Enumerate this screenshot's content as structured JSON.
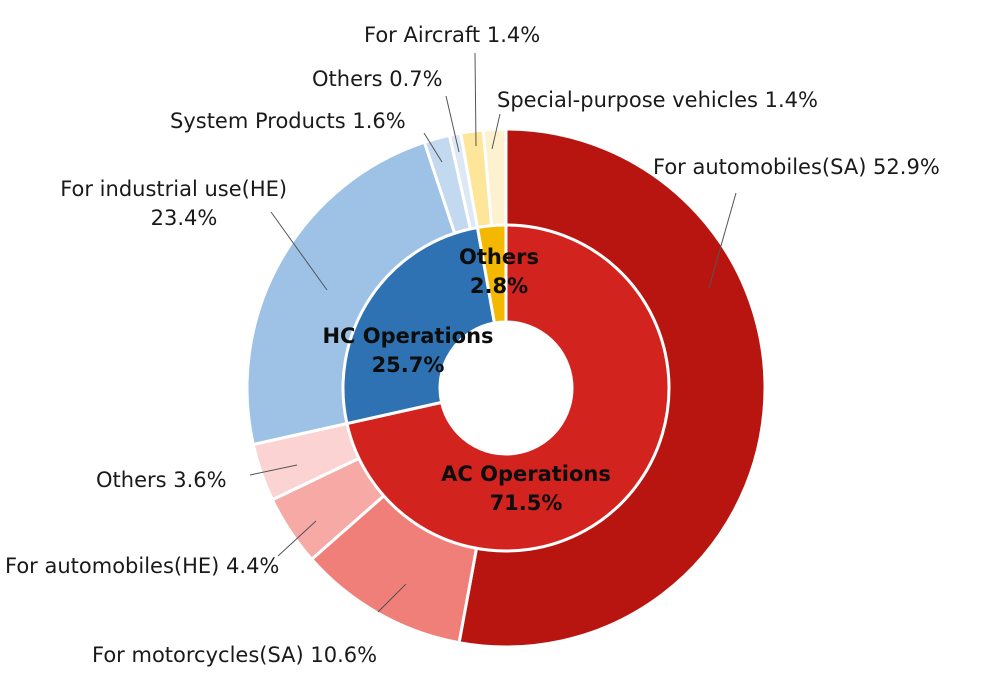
{
  "chart_data": {
    "type": "donut-sunburst",
    "title": "",
    "inner_ring": [
      {
        "name": "AC Operations",
        "value": 71.5,
        "label_pct": "71.5%",
        "color": "#d2231e"
      },
      {
        "name": "HC Operations",
        "value": 25.7,
        "label_pct": "25.7%",
        "color": "#2e72b4"
      },
      {
        "name": "Others",
        "value": 2.8,
        "label_pct": "2.8%",
        "color": "#f5b800"
      }
    ],
    "outer_ring": [
      {
        "label": "For automobiles(SA) 52.9%",
        "value": 52.9,
        "parent": "AC Operations",
        "color": "#b91510"
      },
      {
        "label": "For motorcycles(SA) 10.6%",
        "value": 10.6,
        "parent": "AC Operations",
        "color": "#f17f79"
      },
      {
        "label": "For automobiles(HE) 4.4%",
        "value": 4.4,
        "parent": "AC Operations",
        "color": "#f6a9a5"
      },
      {
        "label": "Others 3.6%",
        "value": 3.6,
        "parent": "AC Operations",
        "color": "#fbd3d3"
      },
      {
        "label_lines": [
          "For industrial use(HE)",
          "23.4%"
        ],
        "value": 23.4,
        "parent": "HC Operations",
        "color": "#9dc2e6"
      },
      {
        "label": "System Products 1.6%",
        "value": 1.6,
        "parent": "HC Operations",
        "color": "#c2d9ef"
      },
      {
        "label": "Others 0.7%",
        "value": 0.7,
        "parent": "HC Operations",
        "color": "#dce8f5"
      },
      {
        "label": "For Aircraft 1.4%",
        "value": 1.4,
        "parent": "Others",
        "color": "#fde59a"
      },
      {
        "label": "Special-purpose vehicles 1.4%",
        "value": 1.4,
        "parent": "Others",
        "color": "#fef1cf"
      }
    ]
  }
}
